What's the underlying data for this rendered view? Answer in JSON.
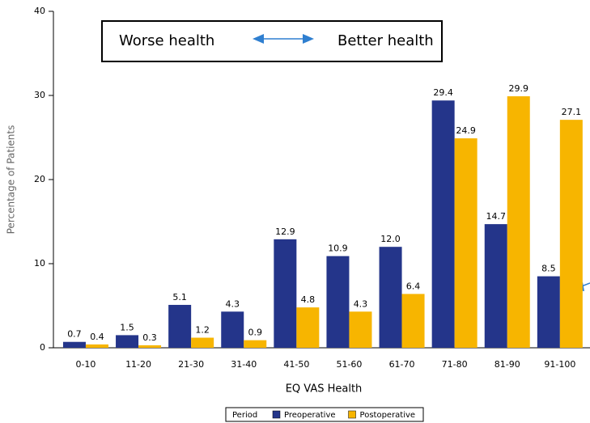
{
  "chart_data": {
    "type": "bar",
    "x_label": "EQ VAS Health",
    "y_label": "Percentage of Patients",
    "categories": [
      "0-10",
      "11-20",
      "21-30",
      "31-40",
      "41-50",
      "51-60",
      "61-70",
      "71-80",
      "81-90",
      "91-100"
    ],
    "series": [
      {
        "name": "Preoperative",
        "color": "#24358a",
        "values": [
          0.7,
          1.5,
          5.1,
          4.3,
          12.9,
          10.9,
          12.0,
          29.4,
          14.7,
          8.5
        ],
        "value_labels": [
          "0.7",
          "1.5",
          "5.1",
          "4.3",
          "12.9",
          "10.9",
          "12.0",
          "29.4",
          "14.7",
          "8.5"
        ]
      },
      {
        "name": "Postoperative",
        "color": "#f7b500",
        "values": [
          0.4,
          0.3,
          1.2,
          0.9,
          4.8,
          4.3,
          6.4,
          24.9,
          29.9,
          27.1
        ],
        "value_labels": [
          "0.4",
          "0.3",
          "1.2",
          "0.9",
          "4.8",
          "4.3",
          "6.4",
          "24.9",
          "29.9",
          "27.1"
        ]
      }
    ],
    "ylim": [
      0,
      40
    ],
    "yticks": [
      0,
      10,
      20,
      30,
      40
    ],
    "legend_title": "Period",
    "legend": "bottom",
    "annotations": [
      "Worse health",
      "Better health"
    ]
  }
}
